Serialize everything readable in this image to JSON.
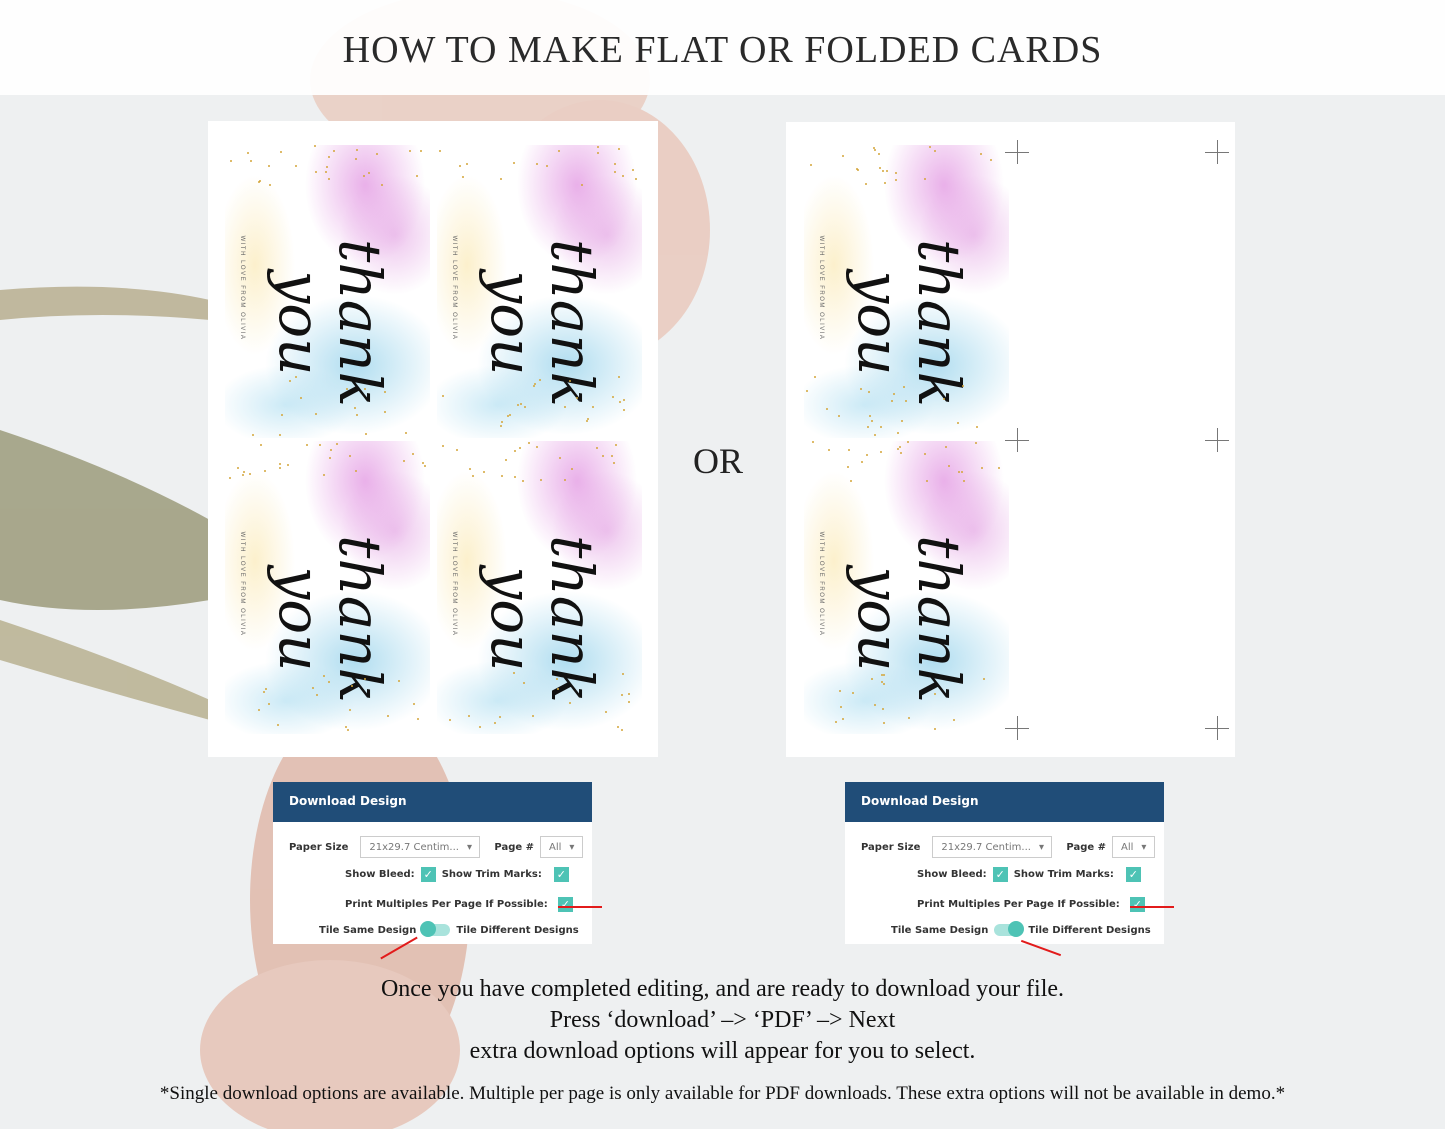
{
  "title": "HOW TO MAKE FLAT OR FOLDED CARDS",
  "or_label": "OR",
  "card": {
    "headline": "thank you",
    "subline": "WITH LOVE FROM OLIVIA"
  },
  "panels": [
    {
      "header": "Download Design",
      "paper_size_label": "Paper Size",
      "paper_size_value": "21x29.7 Centim...",
      "page_label": "Page #",
      "page_value": "All",
      "show_bleed_label": "Show Bleed:",
      "show_bleed": true,
      "show_trim_label": "Show Trim Marks:",
      "show_trim": true,
      "multiples_label": "Print Multiples Per Page If Possible:",
      "multiples": true,
      "tile_same_label": "Tile Same Design",
      "tile_diff_label": "Tile Different Designs",
      "tile_mode": "same"
    },
    {
      "header": "Download Design",
      "paper_size_label": "Paper Size",
      "paper_size_value": "21x29.7 Centim...",
      "page_label": "Page #",
      "page_value": "All",
      "show_bleed_label": "Show Bleed:",
      "show_bleed": true,
      "show_trim_label": "Show Trim Marks:",
      "show_trim": true,
      "multiples_label": "Print Multiples Per Page If Possible:",
      "multiples": true,
      "tile_same_label": "Tile Same Design",
      "tile_diff_label": "Tile Different Designs",
      "tile_mode": "different"
    }
  ],
  "instructions": [
    "Once you have completed editing, and are ready to download your file.",
    "Press ‘download’ –> ‘PDF’ –> Next",
    "extra download options will appear for you to select."
  ],
  "footnote": "*Single download options are available. Multiple per page is only available for PDF downloads. These extra options will not be available in demo.*",
  "colors": {
    "panel_header": "#204d78",
    "checkbox": "#4ec3b5",
    "arrow": "#e21b1b"
  }
}
